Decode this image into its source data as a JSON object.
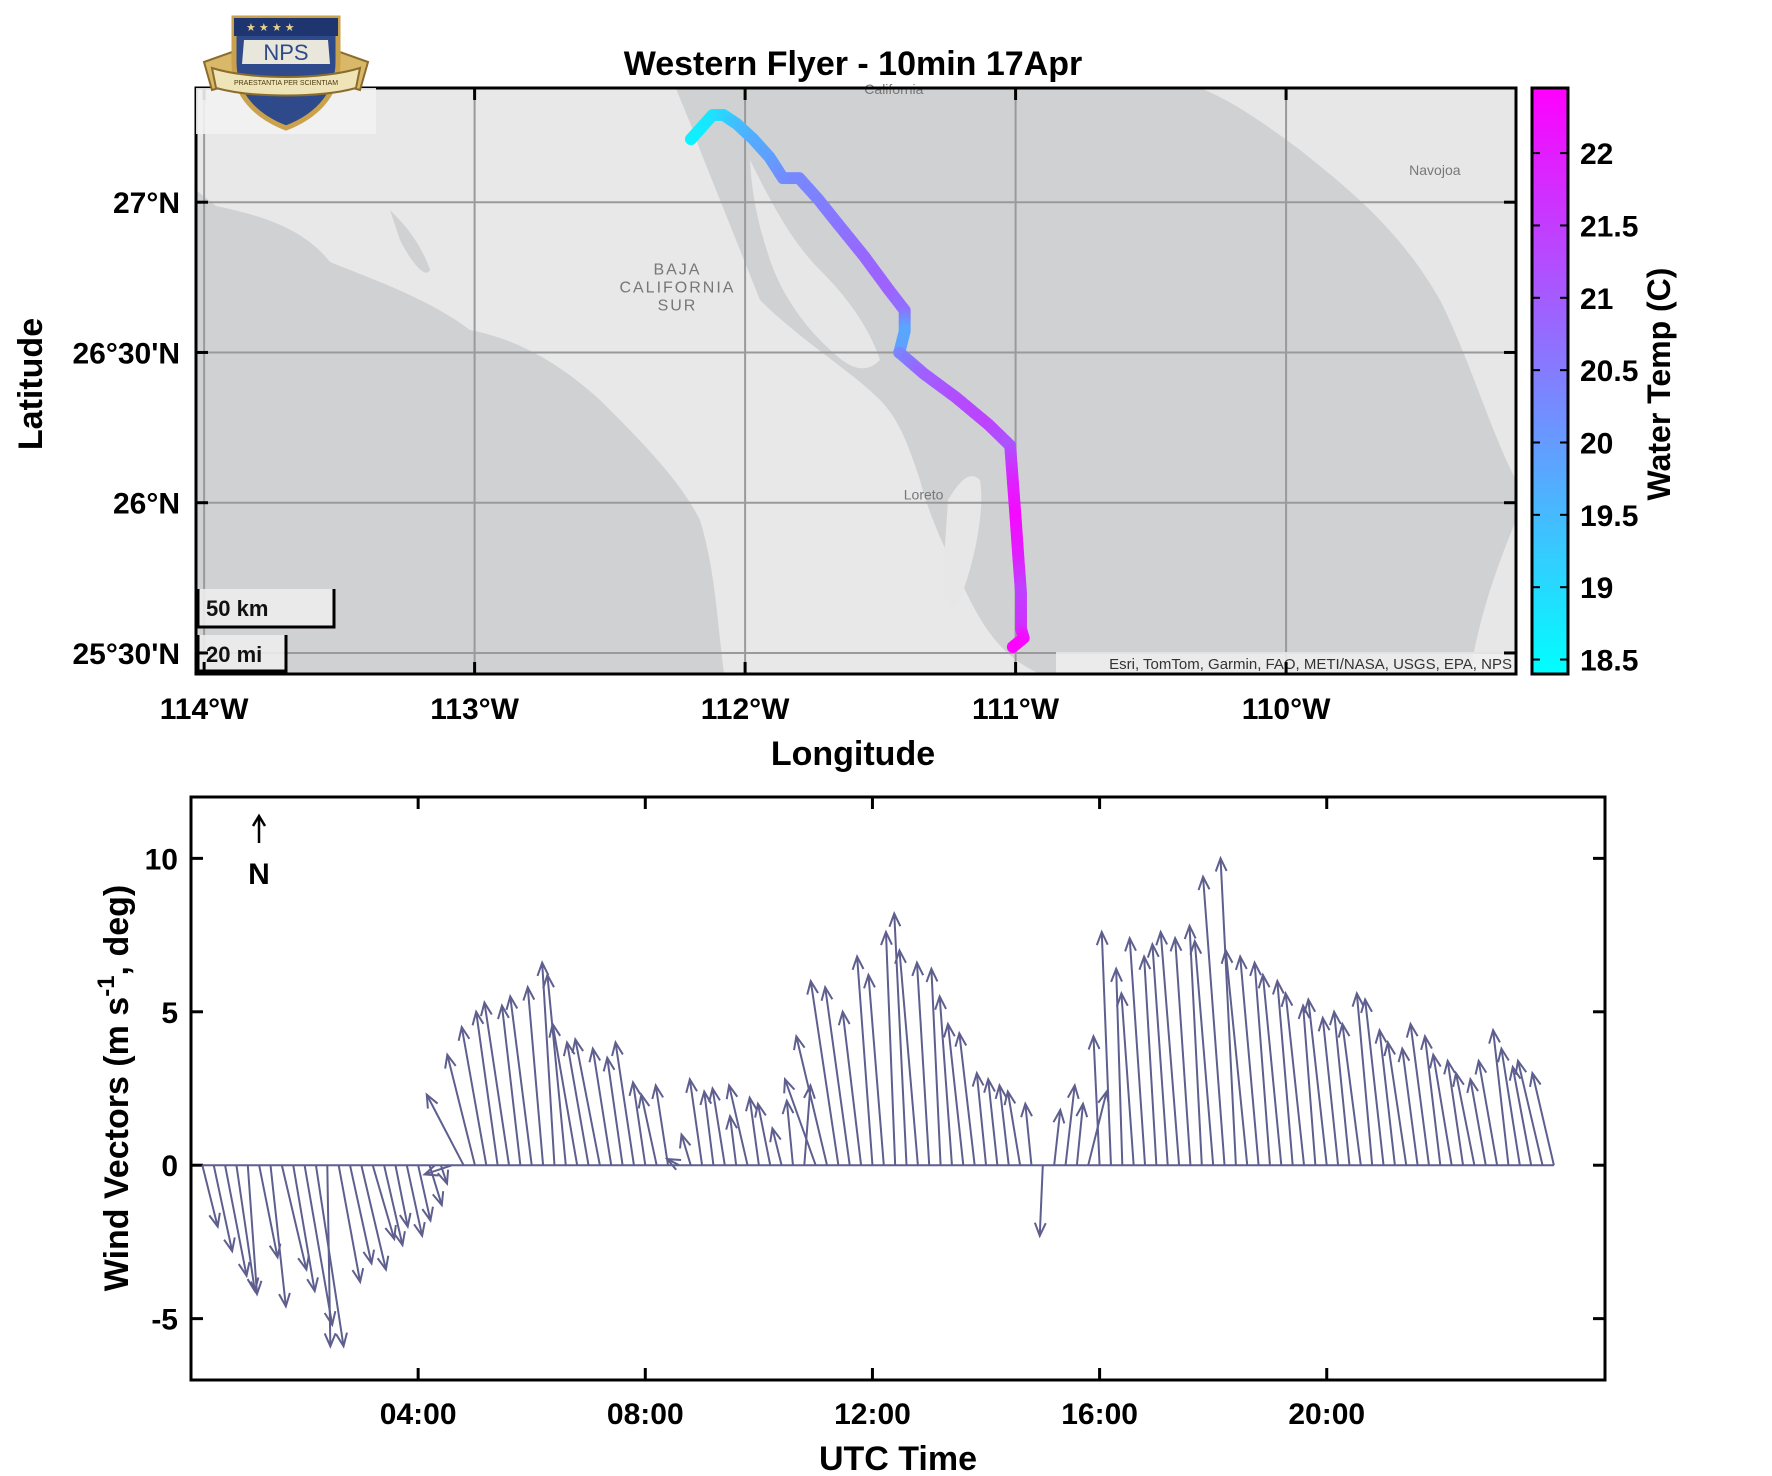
{
  "figure_title": "Western Flyer - 10min 17Apr",
  "logo": {
    "text": "NPS",
    "motto": "PRAESTANTIA PER SCIENTIAM"
  },
  "map": {
    "xlabel": "Longitude",
    "ylabel": "Latitude",
    "x_ticks": [
      {
        "v": -114,
        "label": "114°W"
      },
      {
        "v": -113,
        "label": "113°W"
      },
      {
        "v": -112,
        "label": "112°W"
      },
      {
        "v": -111,
        "label": "111°W"
      },
      {
        "v": -110,
        "label": "110°W"
      }
    ],
    "y_ticks": [
      {
        "v": 25.5,
        "label": "25°30'N"
      },
      {
        "v": 26.0,
        "label": "26°N"
      },
      {
        "v": 26.5,
        "label": "26°30'N"
      },
      {
        "v": 27.0,
        "label": "27°N"
      }
    ],
    "places": [
      {
        "name": "California",
        "lon": -111.45,
        "lat": 27.36
      },
      {
        "name": "Navojoa",
        "lon": -109.45,
        "lat": 27.09
      },
      {
        "name": "BAJA",
        "lon": -112.25,
        "lat": 26.76
      },
      {
        "name": "CALIFORNIA",
        "lon": -112.25,
        "lat": 26.7
      },
      {
        "name": "SUR",
        "lon": -112.25,
        "lat": 26.64
      },
      {
        "name": "Loreto",
        "lon": -111.34,
        "lat": 26.01
      }
    ],
    "scale_bar": {
      "km_label": "50 km",
      "mi_label": "20 mi"
    },
    "attribution": "Esri, TomTom, Garmin, FAO, METI/NASA, USGS, EPA, NPS",
    "colors": {
      "land": "#e7e7e7",
      "water": "#cfd1d3",
      "border": "#000000"
    }
  },
  "colorbar": {
    "label": "Water Temp (C)",
    "ticks": [
      "18.5",
      "19",
      "19.5",
      "20",
      "20.5",
      "21",
      "21.5",
      "22"
    ],
    "range": [
      18.4,
      22.45
    ],
    "colormap_low": "#00ffff",
    "colormap_high": "#ff00ff"
  },
  "chart_data": [
    {
      "type": "scatter",
      "title": "Western Flyer - 10min 17Apr",
      "xlabel": "Longitude",
      "ylabel": "Latitude",
      "xlim": [
        -114.03,
        -109.15
      ],
      "ylim": [
        25.43,
        27.38
      ],
      "color_variable": "Water Temp (C)",
      "track": [
        {
          "lon": -112.2,
          "lat": 27.21,
          "temp": 18.6
        },
        {
          "lon": -112.16,
          "lat": 27.25,
          "temp": 18.7
        },
        {
          "lon": -112.12,
          "lat": 27.29,
          "temp": 18.8
        },
        {
          "lon": -112.08,
          "lat": 27.29,
          "temp": 19.0
        },
        {
          "lon": -112.03,
          "lat": 27.26,
          "temp": 19.4
        },
        {
          "lon": -111.97,
          "lat": 27.21,
          "temp": 19.7
        },
        {
          "lon": -111.91,
          "lat": 27.15,
          "temp": 19.9
        },
        {
          "lon": -111.86,
          "lat": 27.08,
          "temp": 20.2
        },
        {
          "lon": -111.8,
          "lat": 27.08,
          "temp": 20.3
        },
        {
          "lon": -111.73,
          "lat": 27.01,
          "temp": 20.4
        },
        {
          "lon": -111.65,
          "lat": 26.92,
          "temp": 20.6
        },
        {
          "lon": -111.56,
          "lat": 26.82,
          "temp": 20.8
        },
        {
          "lon": -111.47,
          "lat": 26.71,
          "temp": 20.9
        },
        {
          "lon": -111.41,
          "lat": 26.64,
          "temp": 20.7
        },
        {
          "lon": -111.41,
          "lat": 26.57,
          "temp": 19.8
        },
        {
          "lon": -111.43,
          "lat": 26.5,
          "temp": 19.9
        },
        {
          "lon": -111.43,
          "lat": 26.5,
          "temp": 20.3
        },
        {
          "lon": -111.34,
          "lat": 26.43,
          "temp": 20.9
        },
        {
          "lon": -111.22,
          "lat": 26.35,
          "temp": 21.2
        },
        {
          "lon": -111.1,
          "lat": 26.26,
          "temp": 21.4
        },
        {
          "lon": -111.02,
          "lat": 26.19,
          "temp": 21.1
        },
        {
          "lon": -111.01,
          "lat": 26.07,
          "temp": 21.9
        },
        {
          "lon": -111.0,
          "lat": 25.95,
          "temp": 22.3
        },
        {
          "lon": -110.99,
          "lat": 25.82,
          "temp": 22.0
        },
        {
          "lon": -110.98,
          "lat": 25.7,
          "temp": 21.4
        },
        {
          "lon": -110.98,
          "lat": 25.58,
          "temp": 21.7
        },
        {
          "lon": -110.97,
          "lat": 25.55,
          "temp": 22.2
        },
        {
          "lon": -111.01,
          "lat": 25.52,
          "temp": 22.4
        }
      ]
    },
    {
      "type": "quiver",
      "xlabel": "UTC Time",
      "ylabel": "Wind Vectors (m s-1, deg)",
      "ylabel_superscript": "-1",
      "direction_marker": "N",
      "xlim_hours": [
        0,
        24.9
      ],
      "ylim": [
        -7,
        12
      ],
      "x_ticks": [
        {
          "h": 4,
          "label": "04:00"
        },
        {
          "h": 8,
          "label": "08:00"
        },
        {
          "h": 12,
          "label": "12:00"
        },
        {
          "h": 16,
          "label": "16:00"
        },
        {
          "h": 20,
          "label": "20:00"
        }
      ],
      "y_ticks": [
        -5,
        0,
        5,
        10
      ],
      "color": "#5e5f8e",
      "vectors_u_v": [
        {
          "t": 0.2,
          "u": 0.5,
          "v": -2.0
        },
        {
          "t": 0.4,
          "u": 0.6,
          "v": -2.8
        },
        {
          "t": 0.6,
          "u": 0.7,
          "v": -3.6
        },
        {
          "t": 0.8,
          "u": 0.6,
          "v": -4.1
        },
        {
          "t": 1.0,
          "u": 0.3,
          "v": -4.2
        },
        {
          "t": 1.2,
          "u": 0.6,
          "v": -3.0
        },
        {
          "t": 1.4,
          "u": 0.5,
          "v": -4.6
        },
        {
          "t": 1.6,
          "u": 0.8,
          "v": -3.4
        },
        {
          "t": 1.8,
          "u": 0.7,
          "v": -4.1
        },
        {
          "t": 2.0,
          "u": 0.9,
          "v": -5.2
        },
        {
          "t": 2.2,
          "u": 0.9,
          "v": -5.9
        },
        {
          "t": 2.4,
          "u": 0.1,
          "v": -5.9
        },
        {
          "t": 2.6,
          "u": 0.7,
          "v": -3.8
        },
        {
          "t": 2.8,
          "u": 0.7,
          "v": -3.2
        },
        {
          "t": 3.0,
          "u": 0.8,
          "v": -3.4
        },
        {
          "t": 3.2,
          "u": 0.7,
          "v": -2.4
        },
        {
          "t": 3.4,
          "u": 0.6,
          "v": -2.6
        },
        {
          "t": 3.6,
          "u": 0.4,
          "v": -2.0
        },
        {
          "t": 3.8,
          "u": 0.5,
          "v": -2.3
        },
        {
          "t": 4.0,
          "u": 0.4,
          "v": -1.8
        },
        {
          "t": 4.2,
          "u": 0.4,
          "v": -1.3
        },
        {
          "t": 4.4,
          "u": 0.2,
          "v": -0.6
        },
        {
          "t": 4.6,
          "u": -0.9,
          "v": -0.3
        },
        {
          "t": 4.8,
          "u": -1.2,
          "v": 2.3
        },
        {
          "t": 5.0,
          "u": -0.9,
          "v": 3.6
        },
        {
          "t": 5.2,
          "u": -0.8,
          "v": 4.5
        },
        {
          "t": 5.4,
          "u": -0.7,
          "v": 5.0
        },
        {
          "t": 5.6,
          "u": -0.8,
          "v": 5.3
        },
        {
          "t": 5.8,
          "u": -0.6,
          "v": 5.2
        },
        {
          "t": 6.0,
          "u": -0.7,
          "v": 5.5
        },
        {
          "t": 6.2,
          "u": -0.5,
          "v": 5.8
        },
        {
          "t": 6.4,
          "u": -0.4,
          "v": 6.6
        },
        {
          "t": 6.6,
          "u": -0.6,
          "v": 6.2
        },
        {
          "t": 6.8,
          "u": -0.8,
          "v": 4.6
        },
        {
          "t": 7.0,
          "u": -0.7,
          "v": 4.0
        },
        {
          "t": 7.2,
          "u": -0.8,
          "v": 4.1
        },
        {
          "t": 7.4,
          "u": -0.6,
          "v": 3.8
        },
        {
          "t": 7.6,
          "u": -0.5,
          "v": 3.5
        },
        {
          "t": 7.8,
          "u": -0.6,
          "v": 4.0
        },
        {
          "t": 8.0,
          "u": -0.4,
          "v": 2.7
        },
        {
          "t": 8.2,
          "u": -0.5,
          "v": 2.3
        },
        {
          "t": 8.4,
          "u": -0.4,
          "v": 2.6
        },
        {
          "t": 8.6,
          "u": -0.4,
          "v": 0.2
        },
        {
          "t": 8.8,
          "u": -0.3,
          "v": 1.0
        },
        {
          "t": 9.0,
          "u": -0.4,
          "v": 2.8
        },
        {
          "t": 9.2,
          "u": -0.3,
          "v": 2.4
        },
        {
          "t": 9.4,
          "u": -0.4,
          "v": 2.5
        },
        {
          "t": 9.6,
          "u": -0.2,
          "v": 1.6
        },
        {
          "t": 9.8,
          "u": -0.6,
          "v": 2.6
        },
        {
          "t": 10.0,
          "u": -0.3,
          "v": 2.2
        },
        {
          "t": 10.2,
          "u": -0.4,
          "v": 2.0
        },
        {
          "t": 10.4,
          "u": -0.3,
          "v": 1.2
        },
        {
          "t": 10.6,
          "u": -0.2,
          "v": 2.1
        },
        {
          "t": 10.8,
          "u": 0.2,
          "v": 2.6
        },
        {
          "t": 11.0,
          "u": -1.0,
          "v": 2.8
        },
        {
          "t": 11.2,
          "u": -1.0,
          "v": 4.2
        },
        {
          "t": 11.4,
          "u": -0.9,
          "v": 6.0
        },
        {
          "t": 11.6,
          "u": -0.8,
          "v": 5.8
        },
        {
          "t": 11.8,
          "u": -0.6,
          "v": 5.0
        },
        {
          "t": 12.0,
          "u": -0.5,
          "v": 6.8
        },
        {
          "t": 12.2,
          "u": -0.5,
          "v": 6.2
        },
        {
          "t": 12.4,
          "u": -0.3,
          "v": 7.6
        },
        {
          "t": 12.6,
          "u": -0.4,
          "v": 8.2
        },
        {
          "t": 12.8,
          "u": -0.6,
          "v": 7.0
        },
        {
          "t": 13.0,
          "u": -0.4,
          "v": 6.6
        },
        {
          "t": 13.2,
          "u": -0.3,
          "v": 6.4
        },
        {
          "t": 13.4,
          "u": -0.4,
          "v": 5.5
        },
        {
          "t": 13.6,
          "u": -0.5,
          "v": 4.6
        },
        {
          "t": 13.8,
          "u": -0.5,
          "v": 4.3
        },
        {
          "t": 14.0,
          "u": -0.3,
          "v": 3.0
        },
        {
          "t": 14.2,
          "u": -0.3,
          "v": 2.8
        },
        {
          "t": 14.4,
          "u": -0.3,
          "v": 2.6
        },
        {
          "t": 14.6,
          "u": -0.4,
          "v": 2.4
        },
        {
          "t": 14.8,
          "u": -0.2,
          "v": 2.0
        },
        {
          "t": 15.0,
          "u": -0.1,
          "v": -2.3
        },
        {
          "t": 15.2,
          "u": 0.2,
          "v": 1.8
        },
        {
          "t": 15.4,
          "u": 0.3,
          "v": 2.6
        },
        {
          "t": 15.6,
          "u": 0.2,
          "v": 2.0
        },
        {
          "t": 15.8,
          "u": 0.6,
          "v": 2.4
        },
        {
          "t": 16.0,
          "u": -0.2,
          "v": 4.2
        },
        {
          "t": 16.2,
          "u": -0.3,
          "v": 7.6
        },
        {
          "t": 16.4,
          "u": -0.2,
          "v": 6.4
        },
        {
          "t": 16.6,
          "u": -0.4,
          "v": 5.6
        },
        {
          "t": 16.8,
          "u": -0.5,
          "v": 7.4
        },
        {
          "t": 17.0,
          "u": -0.4,
          "v": 6.8
        },
        {
          "t": 17.2,
          "u": -0.5,
          "v": 7.2
        },
        {
          "t": 17.4,
          "u": -0.6,
          "v": 7.6
        },
        {
          "t": 17.6,
          "u": -0.5,
          "v": 7.4
        },
        {
          "t": 17.8,
          "u": -0.4,
          "v": 7.8
        },
        {
          "t": 18.0,
          "u": -0.6,
          "v": 7.3
        },
        {
          "t": 18.2,
          "u": -0.7,
          "v": 9.4
        },
        {
          "t": 18.4,
          "u": -0.5,
          "v": 10.0
        },
        {
          "t": 18.6,
          "u": -0.7,
          "v": 7.0
        },
        {
          "t": 18.8,
          "u": -0.6,
          "v": 6.8
        },
        {
          "t": 19.0,
          "u": -0.5,
          "v": 6.6
        },
        {
          "t": 19.2,
          "u": -0.6,
          "v": 6.2
        },
        {
          "t": 19.4,
          "u": -0.5,
          "v": 6.0
        },
        {
          "t": 19.6,
          "u": -0.6,
          "v": 5.6
        },
        {
          "t": 19.8,
          "u": -0.4,
          "v": 5.2
        },
        {
          "t": 20.0,
          "u": -0.6,
          "v": 5.4
        },
        {
          "t": 20.2,
          "u": -0.5,
          "v": 4.8
        },
        {
          "t": 20.4,
          "u": -0.5,
          "v": 5.0
        },
        {
          "t": 20.6,
          "u": -0.6,
          "v": 4.6
        },
        {
          "t": 20.8,
          "u": -0.5,
          "v": 5.6
        },
        {
          "t": 21.0,
          "u": -0.6,
          "v": 5.4
        },
        {
          "t": 21.2,
          "u": -0.5,
          "v": 4.4
        },
        {
          "t": 21.4,
          "u": -0.6,
          "v": 4.0
        },
        {
          "t": 21.6,
          "u": -0.5,
          "v": 3.8
        },
        {
          "t": 21.8,
          "u": -0.6,
          "v": 4.6
        },
        {
          "t": 22.0,
          "u": -0.5,
          "v": 4.2
        },
        {
          "t": 22.2,
          "u": -0.6,
          "v": 3.6
        },
        {
          "t": 22.4,
          "u": -0.5,
          "v": 3.4
        },
        {
          "t": 22.6,
          "u": -0.6,
          "v": 3.0
        },
        {
          "t": 22.8,
          "u": -0.5,
          "v": 2.8
        },
        {
          "t": 23.0,
          "u": -0.6,
          "v": 3.4
        },
        {
          "t": 23.2,
          "u": -0.5,
          "v": 4.4
        },
        {
          "t": 23.4,
          "u": -0.6,
          "v": 3.8
        },
        {
          "t": 23.6,
          "u": -0.6,
          "v": 3.2
        },
        {
          "t": 23.8,
          "u": -0.8,
          "v": 3.4
        },
        {
          "t": 24.0,
          "u": -0.7,
          "v": 3.0
        }
      ]
    }
  ]
}
